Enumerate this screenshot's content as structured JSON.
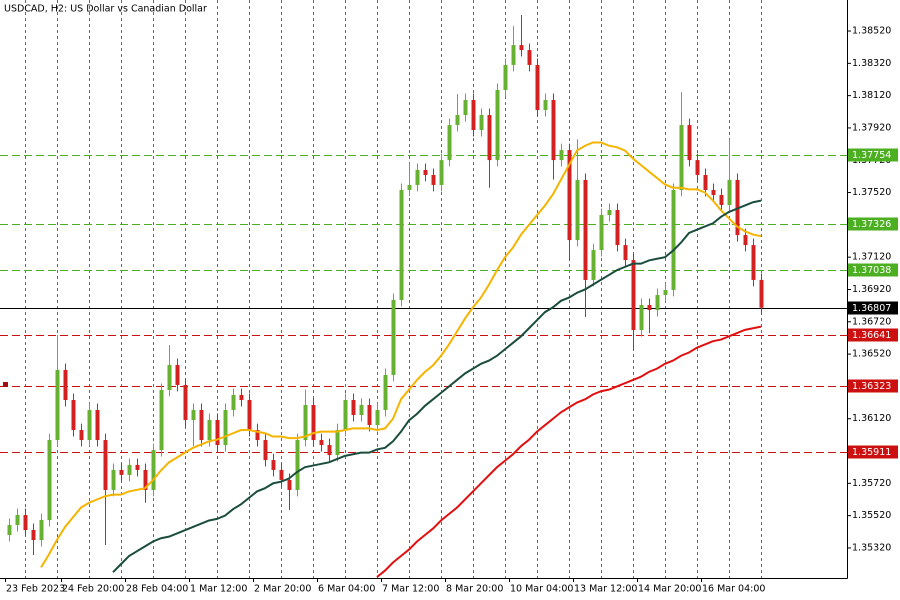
{
  "chart_data": {
    "type": "candlestick",
    "title": "USDCAD, H2:  US Dollar vs Canadian Dollar",
    "up_color": "#66b032",
    "down_color": "#d32020",
    "categories": [
      "23 Feb 2023",
      null,
      null,
      null,
      null,
      null,
      null,
      "24 Feb 20:00",
      null,
      null,
      null,
      null,
      null,
      null,
      null,
      "28 Feb 04:00",
      null,
      null,
      null,
      null,
      null,
      null,
      null,
      "1 Mar 12:00",
      null,
      null,
      null,
      null,
      null,
      null,
      null,
      "2 Mar 20:00",
      null,
      null,
      null,
      null,
      null,
      null,
      null,
      "6 Mar 04:00",
      null,
      null,
      null,
      null,
      null,
      null,
      null,
      "7 Mar 12:00",
      null,
      null,
      null,
      null,
      null,
      null,
      null,
      "8 Mar 20:00",
      null,
      null,
      null,
      null,
      null,
      null,
      null,
      "10 Mar 04:00",
      null,
      null,
      null,
      null,
      null,
      null,
      null,
      "13 Mar 12:00",
      null,
      null,
      null,
      null,
      null,
      null,
      null,
      "14 Mar 20:00",
      null,
      null,
      null,
      null,
      null,
      null,
      null,
      "16 Mar 04:00",
      null,
      null,
      null,
      null,
      null,
      null,
      null
    ],
    "candles": [
      [
        1.354,
        1.35502,
        1.3536,
        1.35462
      ],
      [
        1.35462,
        1.35564,
        1.35422,
        1.35524
      ],
      [
        1.35524,
        1.35564,
        1.35391,
        1.35431
      ],
      [
        1.35431,
        1.35471,
        1.35276,
        1.35369
      ],
      [
        1.35369,
        1.35533,
        1.35329,
        1.35493
      ],
      [
        1.35493,
        1.36028,
        1.35453,
        1.35988
      ],
      [
        1.35988,
        1.36638,
        1.35948,
        1.36422
      ],
      [
        1.36422,
        1.36462,
        1.36196,
        1.36236
      ],
      [
        1.36236,
        1.36276,
        1.3601,
        1.3605
      ],
      [
        1.3605,
        1.3609,
        1.35948,
        1.35988
      ],
      [
        1.35988,
        1.36214,
        1.35948,
        1.36174
      ],
      [
        1.36174,
        1.36214,
        1.35948,
        1.35988
      ],
      [
        1.35988,
        1.36028,
        1.35338,
        1.35679
      ],
      [
        1.35679,
        1.35843,
        1.35639,
        1.35803
      ],
      [
        1.35803,
        1.35843,
        1.35732,
        1.35772
      ],
      [
        1.35772,
        1.35874,
        1.35732,
        1.35834
      ],
      [
        1.35834,
        1.35874,
        1.35763,
        1.35803
      ],
      [
        1.35803,
        1.35843,
        1.356,
        1.35679
      ],
      [
        1.35679,
        1.35966,
        1.35639,
        1.35926
      ],
      [
        1.35926,
        1.36338,
        1.35886,
        1.36298
      ],
      [
        1.36298,
        1.36576,
        1.36258,
        1.36453
      ],
      [
        1.36453,
        1.36493,
        1.36289,
        1.36329
      ],
      [
        1.36329,
        1.36369,
        1.36072,
        1.36112
      ],
      [
        1.36112,
        1.36214,
        1.3595,
        1.36174
      ],
      [
        1.36174,
        1.36214,
        1.35948,
        1.35988
      ],
      [
        1.35988,
        1.36152,
        1.35948,
        1.36112
      ],
      [
        1.36112,
        1.36152,
        1.35917,
        1.35957
      ],
      [
        1.35957,
        1.36214,
        1.35917,
        1.36174
      ],
      [
        1.36174,
        1.36307,
        1.36134,
        1.36267
      ],
      [
        1.36267,
        1.36307,
        1.36196,
        1.36236
      ],
      [
        1.36236,
        1.36276,
        1.3601,
        1.3605
      ],
      [
        1.3605,
        1.3609,
        1.35948,
        1.35988
      ],
      [
        1.35988,
        1.36028,
        1.35824,
        1.35864
      ],
      [
        1.35864,
        1.35904,
        1.35763,
        1.35803
      ],
      [
        1.35803,
        1.35843,
        1.35701,
        1.35741
      ],
      [
        1.35741,
        1.35781,
        1.35555,
        1.35679
      ],
      [
        1.35679,
        1.36028,
        1.35639,
        1.35988
      ],
      [
        1.35988,
        1.363,
        1.35948,
        1.36205
      ],
      [
        1.36205,
        1.36245,
        1.35948,
        1.35988
      ],
      [
        1.35988,
        1.36028,
        1.35917,
        1.35957
      ],
      [
        1.35957,
        1.35997,
        1.35855,
        1.35895
      ],
      [
        1.35895,
        1.3609,
        1.35855,
        1.3605
      ],
      [
        1.3605,
        1.36276,
        1.3601,
        1.36236
      ],
      [
        1.36236,
        1.36276,
        1.36103,
        1.36143
      ],
      [
        1.36143,
        1.36245,
        1.36103,
        1.36205
      ],
      [
        1.36205,
        1.36245,
        1.36041,
        1.36081
      ],
      [
        1.36081,
        1.36214,
        1.36041,
        1.36174
      ],
      [
        1.36174,
        1.36431,
        1.36134,
        1.36391
      ],
      [
        1.36391,
        1.36895,
        1.36351,
        1.36855
      ],
      [
        1.36855,
        1.37576,
        1.36815,
        1.37536
      ],
      [
        1.37536,
        1.377,
        1.37496,
        1.37567
      ],
      [
        1.37567,
        1.377,
        1.37527,
        1.3766
      ],
      [
        1.3766,
        1.377,
        1.37589,
        1.37629
      ],
      [
        1.37629,
        1.37669,
        1.37527,
        1.37567
      ],
      [
        1.37567,
        1.37761,
        1.37527,
        1.37721
      ],
      [
        1.37721,
        1.37978,
        1.37681,
        1.37938
      ],
      [
        1.37938,
        1.3813,
        1.37898,
        1.38
      ],
      [
        1.38,
        1.38133,
        1.3796,
        1.38093
      ],
      [
        1.38093,
        1.38133,
        1.37867,
        1.37907
      ],
      [
        1.37907,
        1.3804,
        1.37867,
        1.38
      ],
      [
        1.38,
        1.3804,
        1.3755,
        1.37721
      ],
      [
        1.37721,
        1.38195,
        1.37681,
        1.38155
      ],
      [
        1.38155,
        1.3835,
        1.38115,
        1.3831
      ],
      [
        1.3831,
        1.3855,
        1.3827,
        1.38433
      ],
      [
        1.38433,
        1.38619,
        1.38362,
        1.38402
      ],
      [
        1.38402,
        1.38442,
        1.3827,
        1.3831
      ],
      [
        1.3831,
        1.3835,
        1.37991,
        1.38031
      ],
      [
        1.38031,
        1.38133,
        1.37991,
        1.38093
      ],
      [
        1.38093,
        1.38133,
        1.376,
        1.37721
      ],
      [
        1.37721,
        1.37823,
        1.37681,
        1.37783
      ],
      [
        1.37783,
        1.37823,
        1.371,
        1.37226
      ],
      [
        1.37226,
        1.3785,
        1.37186,
        1.37598
      ],
      [
        1.37598,
        1.37638,
        1.3675,
        1.36979
      ],
      [
        1.36979,
        1.37204,
        1.36939,
        1.37164
      ],
      [
        1.37164,
        1.37421,
        1.37124,
        1.37381
      ],
      [
        1.37381,
        1.37452,
        1.37341,
        1.37412
      ],
      [
        1.37412,
        1.37452,
        1.37155,
        1.37195
      ],
      [
        1.37195,
        1.37235,
        1.37062,
        1.37102
      ],
      [
        1.37102,
        1.37142,
        1.36545,
        1.36669
      ],
      [
        1.36669,
        1.36864,
        1.36629,
        1.36824
      ],
      [
        1.36824,
        1.36864,
        1.3665,
        1.36793
      ],
      [
        1.36793,
        1.36926,
        1.36753,
        1.36886
      ],
      [
        1.36886,
        1.36957,
        1.36846,
        1.36917
      ],
      [
        1.36917,
        1.37576,
        1.36877,
        1.37536
      ],
      [
        1.37536,
        1.38142,
        1.37496,
        1.37938
      ],
      [
        1.37938,
        1.37978,
        1.37681,
        1.37721
      ],
      [
        1.37721,
        1.37761,
        1.37589,
        1.37629
      ],
      [
        1.37629,
        1.37669,
        1.37496,
        1.37536
      ],
      [
        1.37536,
        1.37576,
        1.37465,
        1.37505
      ],
      [
        1.37505,
        1.37545,
        1.37403,
        1.37443
      ],
      [
        1.37443,
        1.3785,
        1.37403,
        1.37598
      ],
      [
        1.37598,
        1.37638,
        1.37217,
        1.37257
      ],
      [
        1.37257,
        1.37297,
        1.37155,
        1.37195
      ],
      [
        1.37195,
        1.37235,
        1.36939,
        1.36979
      ],
      [
        1.36979,
        1.37019,
        1.36767,
        1.36807
      ]
    ],
    "series": [
      {
        "color": "#f5b400",
        "values": [
          null,
          null,
          null,
          null,
          1.352,
          1.3528,
          1.3537,
          1.3545,
          1.3551,
          1.3557,
          1.356,
          1.3562,
          1.3564,
          1.3565,
          1.3565,
          1.3567,
          1.3568,
          1.3569,
          1.3574,
          1.358,
          1.3585,
          1.3588,
          1.3591,
          1.3594,
          1.3596,
          1.3598,
          1.3599,
          1.3601,
          1.3603,
          1.3605,
          1.3605,
          1.3604,
          1.3603,
          1.3601,
          1.3601,
          1.36,
          1.36,
          1.3601,
          1.3603,
          1.3604,
          1.3604,
          1.3604,
          1.3605,
          1.3606,
          1.3606,
          1.3606,
          1.3605,
          1.3606,
          1.3612,
          1.3624,
          1.363,
          1.3636,
          1.3641,
          1.3645,
          1.3651,
          1.3658,
          1.3666,
          1.3674,
          1.3681,
          1.3687,
          1.3695,
          1.3704,
          1.3712,
          1.3718,
          1.3726,
          1.3732,
          1.3738,
          1.3744,
          1.3751,
          1.376,
          1.3769,
          1.3778,
          1.3781,
          1.3783,
          1.3783,
          1.3781,
          1.378,
          1.3778,
          1.3773,
          1.3769,
          1.3765,
          1.3761,
          1.3757,
          1.3755,
          1.3755,
          1.3754,
          1.3754,
          1.3752,
          1.3747,
          1.3741,
          1.3736,
          1.3731,
          1.3728,
          1.3726,
          1.3725
        ]
      },
      {
        "color": "#1b4d3e",
        "values": [
          null,
          null,
          null,
          null,
          null,
          null,
          null,
          null,
          null,
          null,
          null,
          null,
          null,
          1.3517,
          1.3522,
          1.3527,
          1.353,
          1.3533,
          1.3536,
          1.3538,
          1.3539,
          1.3541,
          1.3543,
          1.3545,
          1.3547,
          1.3549,
          1.355,
          1.3552,
          1.3556,
          1.3559,
          1.3563,
          1.3567,
          1.3569,
          1.3572,
          1.3573,
          1.3575,
          1.3579,
          1.3582,
          1.3583,
          1.3584,
          1.3585,
          1.3587,
          1.3589,
          1.359,
          1.3591,
          1.3591,
          1.3593,
          1.3594,
          1.3598,
          1.3604,
          1.3611,
          1.3615,
          1.362,
          1.3624,
          1.3628,
          1.3632,
          1.3636,
          1.364,
          1.3643,
          1.3646,
          1.3648,
          1.3651,
          1.3655,
          1.3659,
          1.3663,
          1.3668,
          1.3673,
          1.3678,
          1.3681,
          1.3685,
          1.3687,
          1.369,
          1.3692,
          1.3695,
          1.3698,
          1.3701,
          1.3704,
          1.3706,
          1.3708,
          1.3708,
          1.371,
          1.3711,
          1.3712,
          1.3716,
          1.3721,
          1.3727,
          1.3729,
          1.3731,
          1.3733,
          1.3737,
          1.374,
          1.3742,
          1.3744,
          1.3746,
          1.3747
        ]
      },
      {
        "color": "#e01010",
        "values": [
          null,
          null,
          null,
          null,
          null,
          null,
          null,
          null,
          null,
          null,
          null,
          null,
          null,
          null,
          null,
          null,
          null,
          null,
          null,
          null,
          null,
          null,
          null,
          null,
          null,
          null,
          null,
          null,
          null,
          null,
          null,
          null,
          null,
          null,
          null,
          null,
          null,
          null,
          null,
          null,
          null,
          null,
          null,
          null,
          null,
          null,
          1.3514,
          1.3518,
          1.3523,
          1.3527,
          1.3531,
          1.3536,
          1.354,
          1.3544,
          1.3549,
          1.3553,
          1.3557,
          1.3562,
          1.3567,
          1.3572,
          1.3577,
          1.3582,
          1.3586,
          1.359,
          1.3595,
          1.3599,
          1.3604,
          1.3608,
          1.3612,
          1.3616,
          1.3619,
          1.3622,
          1.3624,
          1.3627,
          1.3629,
          1.363,
          1.3632,
          1.3634,
          1.3636,
          1.3638,
          1.3641,
          1.3643,
          1.3646,
          1.3648,
          1.3651,
          1.3653,
          1.3656,
          1.3658,
          1.366,
          1.3661,
          1.3663,
          1.3665,
          1.3667,
          1.3668,
          1.3669
        ]
      }
    ],
    "levels": [
      {
        "value": 1.37754,
        "color": "#4caf22"
      },
      {
        "value": 1.37326,
        "color": "#4caf22"
      },
      {
        "value": 1.37038,
        "color": "#4caf22"
      },
      {
        "value": 1.36641,
        "color": "#cc1010"
      },
      {
        "value": 1.36323,
        "color": "#cc1010"
      },
      {
        "value": 1.35911,
        "color": "#cc1010"
      }
    ],
    "last_price": 1.36807,
    "ylim": [
      1.35134,
      1.38712
    ],
    "yticks": [
      {
        "value": 1.3852,
        "label": "1.38520"
      },
      {
        "value": 1.3832,
        "label": "1.38320"
      },
      {
        "value": 1.3812,
        "label": "1.38120"
      },
      {
        "value": 1.3792,
        "label": "1.37920"
      },
      {
        "value": 1.3772,
        "label": "1.37720"
      },
      {
        "value": 1.3752,
        "label": "1.37520"
      },
      {
        "value": 1.3732,
        "label": "1.37320"
      },
      {
        "value": 1.3712,
        "label": "1.37120"
      },
      {
        "value": 1.3692,
        "label": "1.36920"
      },
      {
        "value": 1.3672,
        "label": "1.36720"
      },
      {
        "value": 1.3652,
        "label": "1.36520"
      },
      {
        "value": 1.3632,
        "label": "1.36320"
      },
      {
        "value": 1.3612,
        "label": "1.36120"
      },
      {
        "value": 1.3592,
        "label": "1.35920"
      },
      {
        "value": 1.3572,
        "label": "1.35720"
      },
      {
        "value": 1.3552,
        "label": "1.35520"
      },
      {
        "value": 1.3532,
        "label": "1.35320"
      }
    ]
  }
}
